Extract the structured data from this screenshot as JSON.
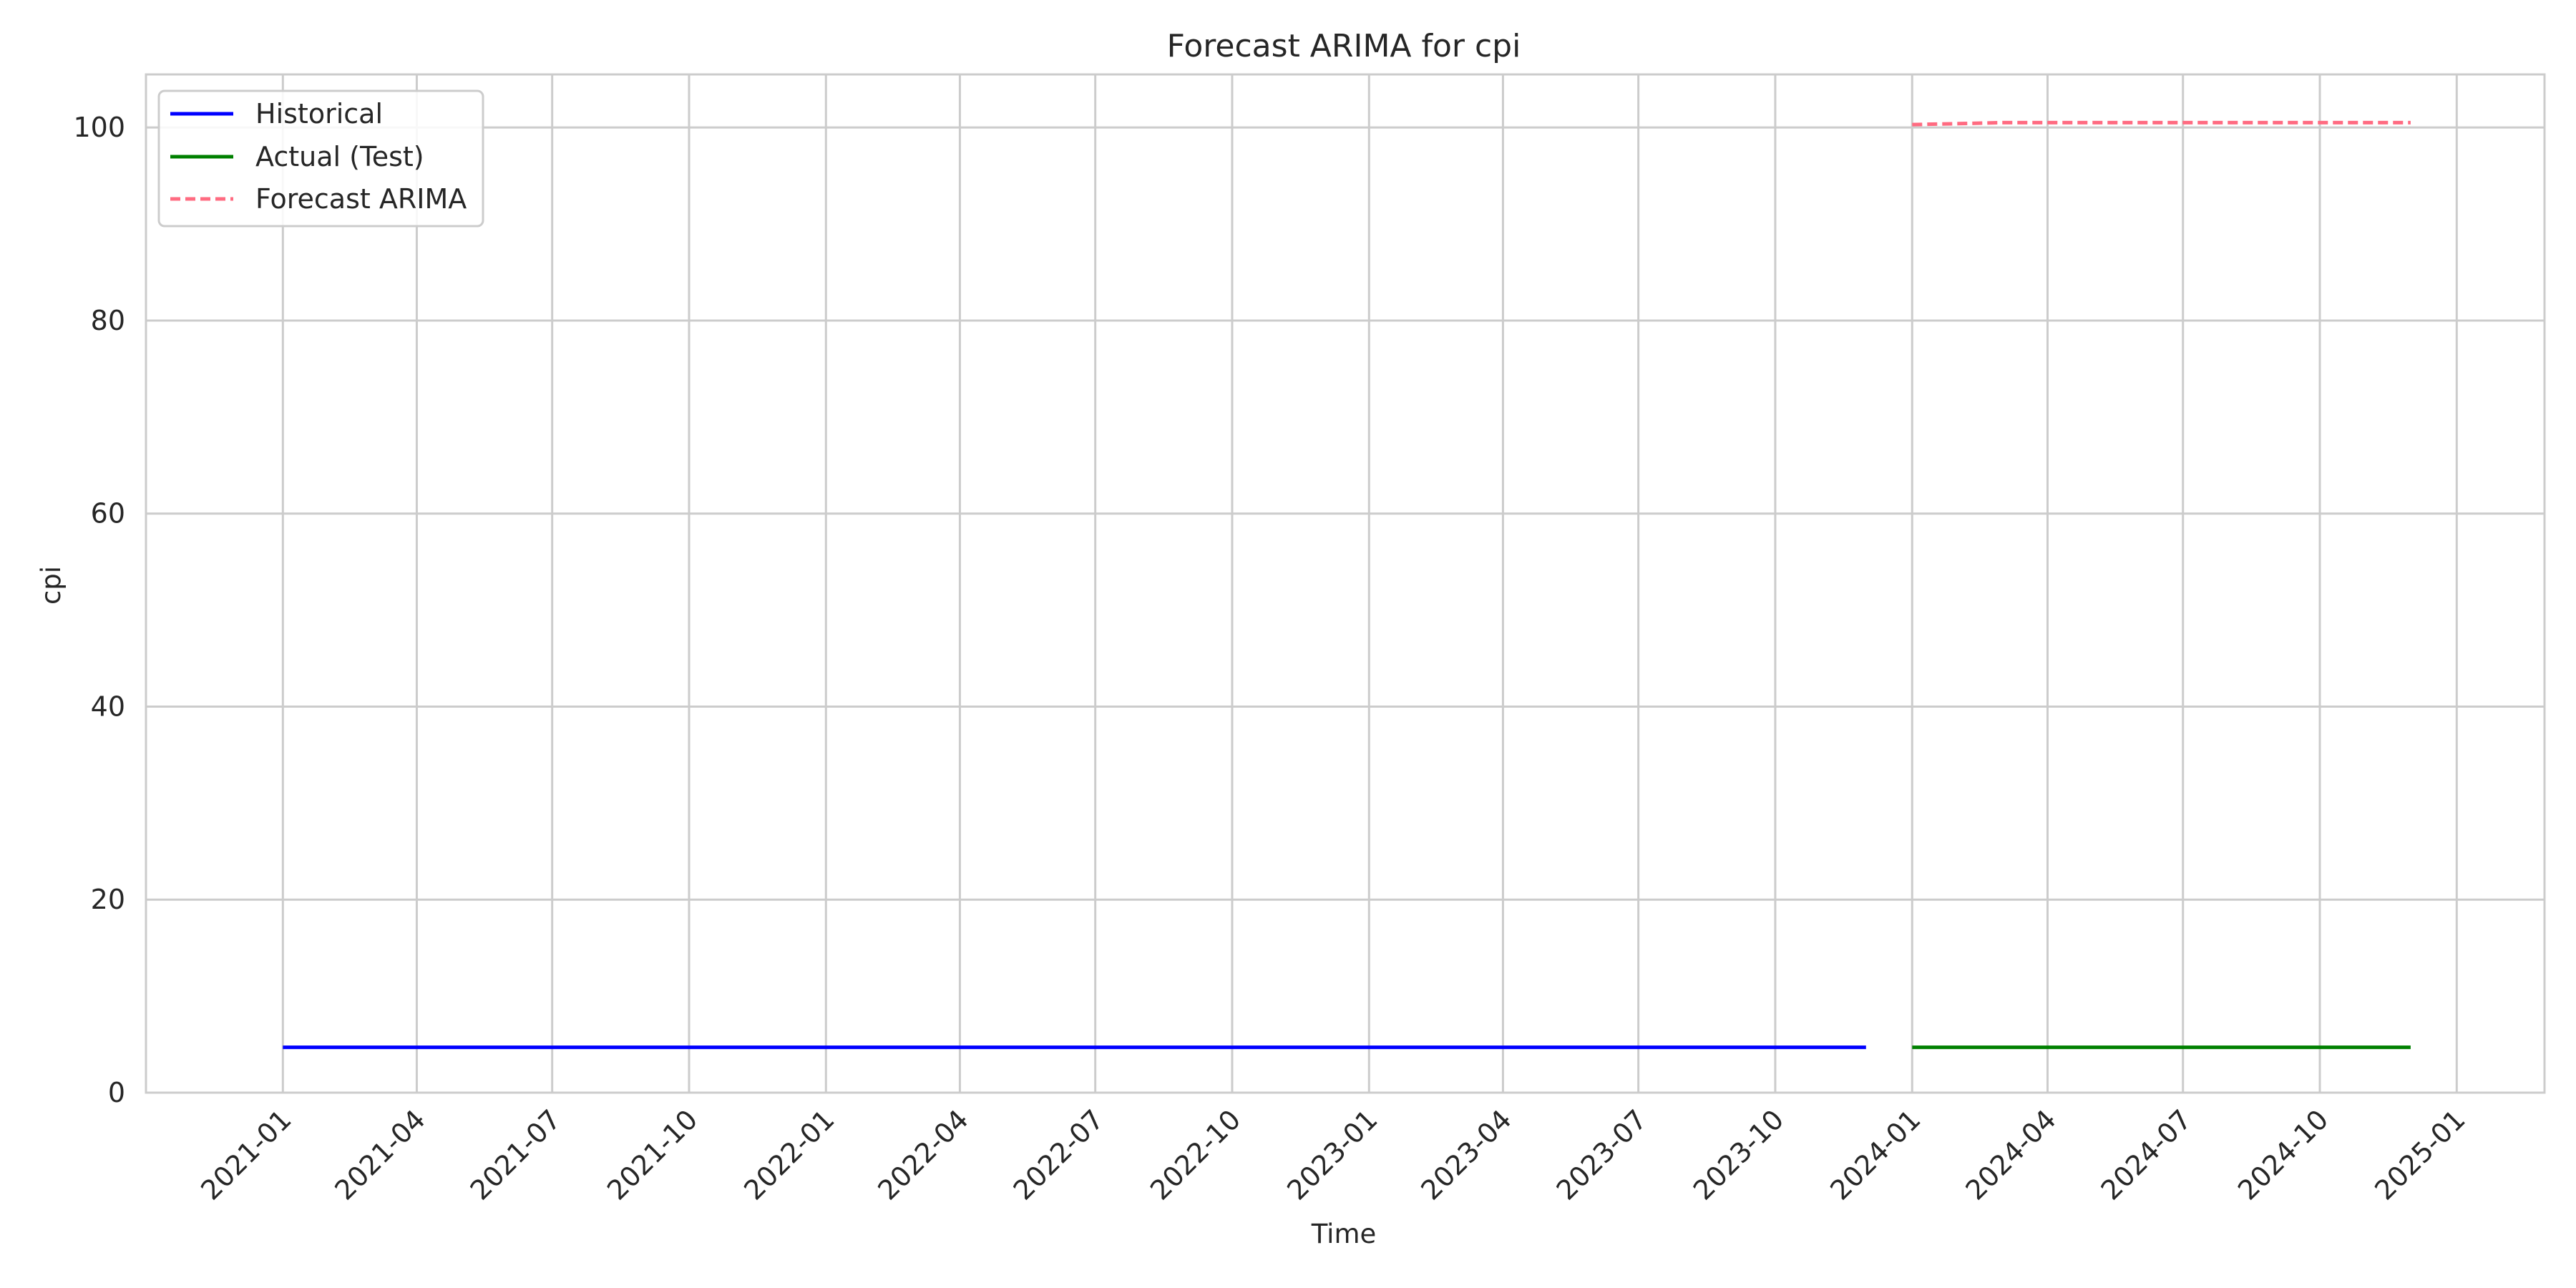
{
  "chart_data": {
    "type": "line",
    "title": "Forecast ARIMA for cpi",
    "xlabel": "Time",
    "ylabel": "cpi",
    "x_axis_type": "date",
    "xlim": [
      "2020-10-01",
      "2025-03-01"
    ],
    "ylim": [
      0,
      105.5
    ],
    "x_ticks": [
      "2021-01",
      "2021-04",
      "2021-07",
      "2021-10",
      "2022-01",
      "2022-04",
      "2022-07",
      "2022-10",
      "2023-01",
      "2023-04",
      "2023-07",
      "2023-10",
      "2024-01",
      "2024-04",
      "2024-07",
      "2024-10",
      "2025-01"
    ],
    "y_ticks": [
      0,
      20,
      40,
      60,
      80,
      100
    ],
    "grid": true,
    "legend_position": "top-left",
    "series": [
      {
        "name": "Historical",
        "color": "#0000ff",
        "style": "solid",
        "x": [
          "2021-01",
          "2021-02",
          "2021-03",
          "2021-04",
          "2021-05",
          "2021-06",
          "2021-07",
          "2021-08",
          "2021-09",
          "2021-10",
          "2021-11",
          "2021-12",
          "2022-01",
          "2022-02",
          "2022-03",
          "2022-04",
          "2022-05",
          "2022-06",
          "2022-07",
          "2022-08",
          "2022-09",
          "2022-10",
          "2022-11",
          "2022-12",
          "2023-01",
          "2023-02",
          "2023-03",
          "2023-04",
          "2023-05",
          "2023-06",
          "2023-07",
          "2023-08",
          "2023-09",
          "2023-10",
          "2023-11",
          "2023-12"
        ],
        "y": [
          4.7,
          4.7,
          4.7,
          4.7,
          4.7,
          4.7,
          4.7,
          4.7,
          4.7,
          4.7,
          4.7,
          4.7,
          4.7,
          4.7,
          4.7,
          4.7,
          4.7,
          4.7,
          4.7,
          4.7,
          4.7,
          4.7,
          4.7,
          4.7,
          4.7,
          4.7,
          4.7,
          4.7,
          4.7,
          4.7,
          4.7,
          4.7,
          4.7,
          4.7,
          4.7,
          4.7
        ]
      },
      {
        "name": "Actual (Test)",
        "color": "#008000",
        "style": "solid",
        "x": [
          "2024-01",
          "2024-02",
          "2024-03",
          "2024-04",
          "2024-05",
          "2024-06",
          "2024-07",
          "2024-08",
          "2024-09",
          "2024-10",
          "2024-11",
          "2024-12"
        ],
        "y": [
          4.7,
          4.7,
          4.7,
          4.7,
          4.7,
          4.7,
          4.7,
          4.7,
          4.7,
          4.7,
          4.7,
          4.7
        ]
      },
      {
        "name": "Forecast ARIMA",
        "color": "#ff6b81",
        "style": "dashed",
        "x": [
          "2024-01",
          "2024-02",
          "2024-03",
          "2024-04",
          "2024-05",
          "2024-06",
          "2024-07",
          "2024-08",
          "2024-09",
          "2024-10",
          "2024-11",
          "2024-12"
        ],
        "y": [
          100.3,
          100.4,
          100.5,
          100.5,
          100.5,
          100.5,
          100.5,
          100.5,
          100.5,
          100.5,
          100.5,
          100.5
        ]
      }
    ]
  }
}
